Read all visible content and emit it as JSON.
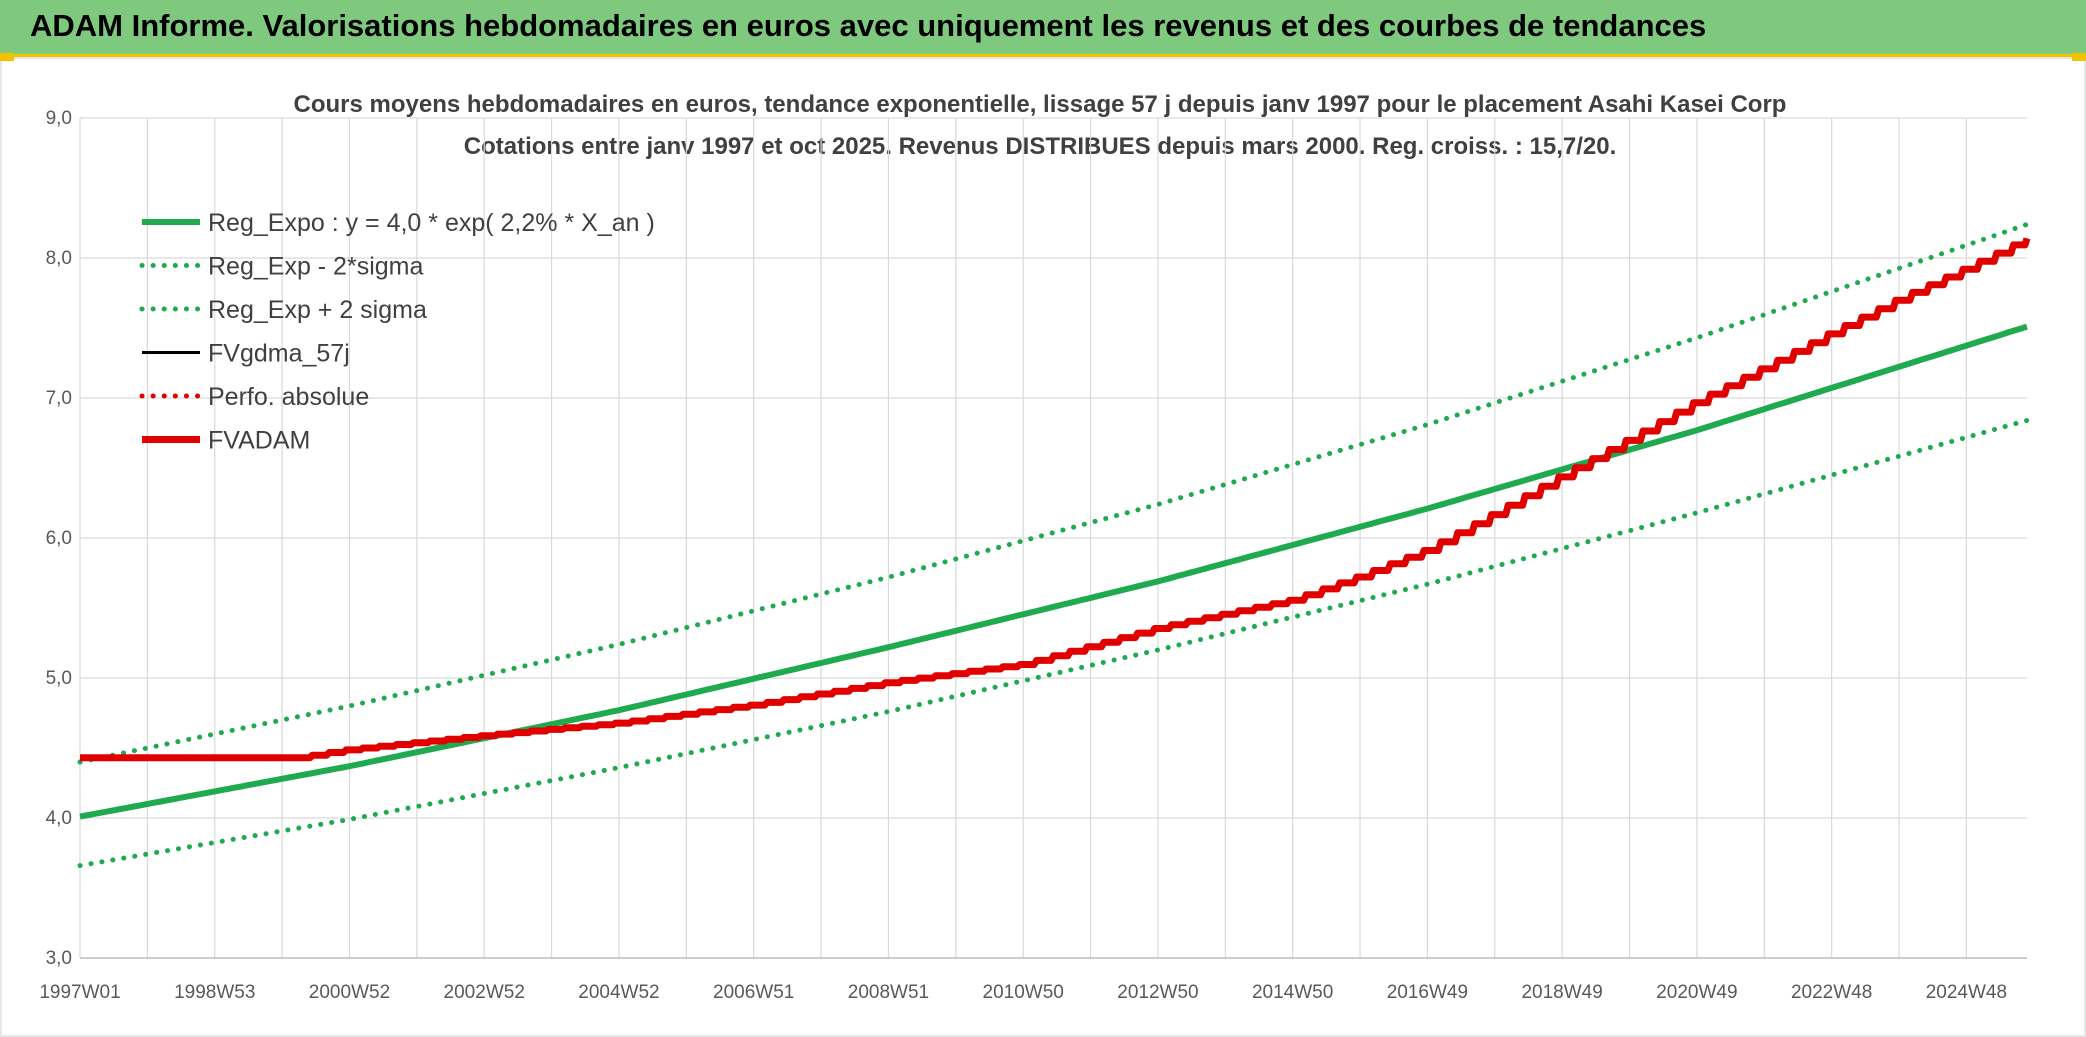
{
  "header": {
    "title": "ADAM Informe. Valorisations hebdomadaires en euros avec uniquement les revenus et des courbes de tendances"
  },
  "chart_data": {
    "type": "line",
    "title": "Cours moyens hebdomadaires en euros, tendance exponentielle, lissage 57 j depuis janv 1997 pour le placement Asahi Kasei Corp",
    "subtitle": "Cotations entre janv 1997 et oct 2025. Revenus DISTRIBUES depuis mars 2000. Reg. croiss. : 15,7/20.",
    "xlabel": "",
    "ylabel": "",
    "ylim": [
      3.0,
      9.0
    ],
    "yticks": [
      "3,0",
      "4,0",
      "5,0",
      "6,0",
      "7,0",
      "8,0",
      "9,0"
    ],
    "xlim": [
      1997.0,
      2025.9
    ],
    "xticks": [
      {
        "label": "1997W01",
        "x": 1997.0
      },
      {
        "label": "1998W53",
        "x": 1999.0
      },
      {
        "label": "2000W52",
        "x": 2001.0
      },
      {
        "label": "2002W52",
        "x": 2003.0
      },
      {
        "label": "2004W52",
        "x": 2005.0
      },
      {
        "label": "2006W51",
        "x": 2007.0
      },
      {
        "label": "2008W51",
        "x": 2009.0
      },
      {
        "label": "2010W50",
        "x": 2011.0
      },
      {
        "label": "2012W50",
        "x": 2013.0
      },
      {
        "label": "2014W50",
        "x": 2015.0
      },
      {
        "label": "2016W49",
        "x": 2017.0
      },
      {
        "label": "2018W49",
        "x": 2019.0
      },
      {
        "label": "2020W49",
        "x": 2021.0
      },
      {
        "label": "2022W48",
        "x": 2023.0
      },
      {
        "label": "2024W48",
        "x": 2025.0
      }
    ],
    "grid": true,
    "legend_position": "top-left",
    "series": [
      {
        "name": "Reg_Expo : y = 4,0 * exp( 2,2% *  X_an )",
        "style": "solid",
        "color": "#1faa4f",
        "x": [
          1997.0,
          2001.0,
          2005.0,
          2009.0,
          2013.0,
          2017.0,
          2021.0,
          2025.9
        ],
        "y": [
          4.01,
          4.37,
          4.77,
          5.22,
          5.69,
          6.21,
          6.77,
          7.51
        ]
      },
      {
        "name": "Reg_Exp - 2*sigma",
        "style": "dotted",
        "color": "#1faa4f",
        "x": [
          1997.0,
          2001.0,
          2005.0,
          2009.0,
          2013.0,
          2017.0,
          2021.0,
          2025.9
        ],
        "y": [
          3.66,
          3.99,
          4.36,
          4.76,
          5.2,
          5.67,
          6.18,
          6.84
        ]
      },
      {
        "name": "Reg_Exp + 2 sigma",
        "style": "dotted",
        "color": "#1faa4f",
        "x": [
          1997.0,
          2001.0,
          2005.0,
          2009.0,
          2013.0,
          2017.0,
          2021.0,
          2025.9
        ],
        "y": [
          4.4,
          4.8,
          5.24,
          5.72,
          6.24,
          6.81,
          7.43,
          8.24
        ]
      },
      {
        "name": "FVgdma_57j",
        "style": "solid-thin",
        "color": "#000000",
        "x": [
          1997.0,
          2000.2,
          2001.0,
          2003.0,
          2005.0,
          2007.0,
          2009.0,
          2011.0,
          2013.0,
          2015.0,
          2016.0,
          2017.0,
          2018.0,
          2019.0,
          2020.0,
          2021.0,
          2022.0,
          2023.0,
          2024.0,
          2025.0,
          2025.9
        ],
        "y": [
          4.43,
          4.43,
          4.49,
          4.59,
          4.68,
          4.81,
          4.97,
          5.1,
          5.36,
          5.56,
          5.73,
          5.92,
          6.18,
          6.45,
          6.71,
          6.98,
          7.22,
          7.47,
          7.71,
          7.93,
          8.14
        ]
      },
      {
        "name": "Perfo. absolue",
        "style": "dotted",
        "color": "#e00000",
        "x": [],
        "y": []
      },
      {
        "name": "FVADAM",
        "style": "solid-thick",
        "color": "#e00000",
        "x": [
          1997.0,
          2000.2,
          2001.0,
          2003.0,
          2005.0,
          2007.0,
          2009.0,
          2011.0,
          2013.0,
          2015.0,
          2016.0,
          2017.0,
          2018.0,
          2019.0,
          2020.0,
          2021.0,
          2022.0,
          2023.0,
          2024.0,
          2025.0,
          2025.9
        ],
        "y": [
          4.43,
          4.43,
          4.49,
          4.59,
          4.68,
          4.81,
          4.97,
          5.1,
          5.36,
          5.56,
          5.73,
          5.92,
          6.18,
          6.45,
          6.71,
          6.98,
          7.22,
          7.47,
          7.71,
          7.93,
          8.14
        ]
      }
    ]
  }
}
